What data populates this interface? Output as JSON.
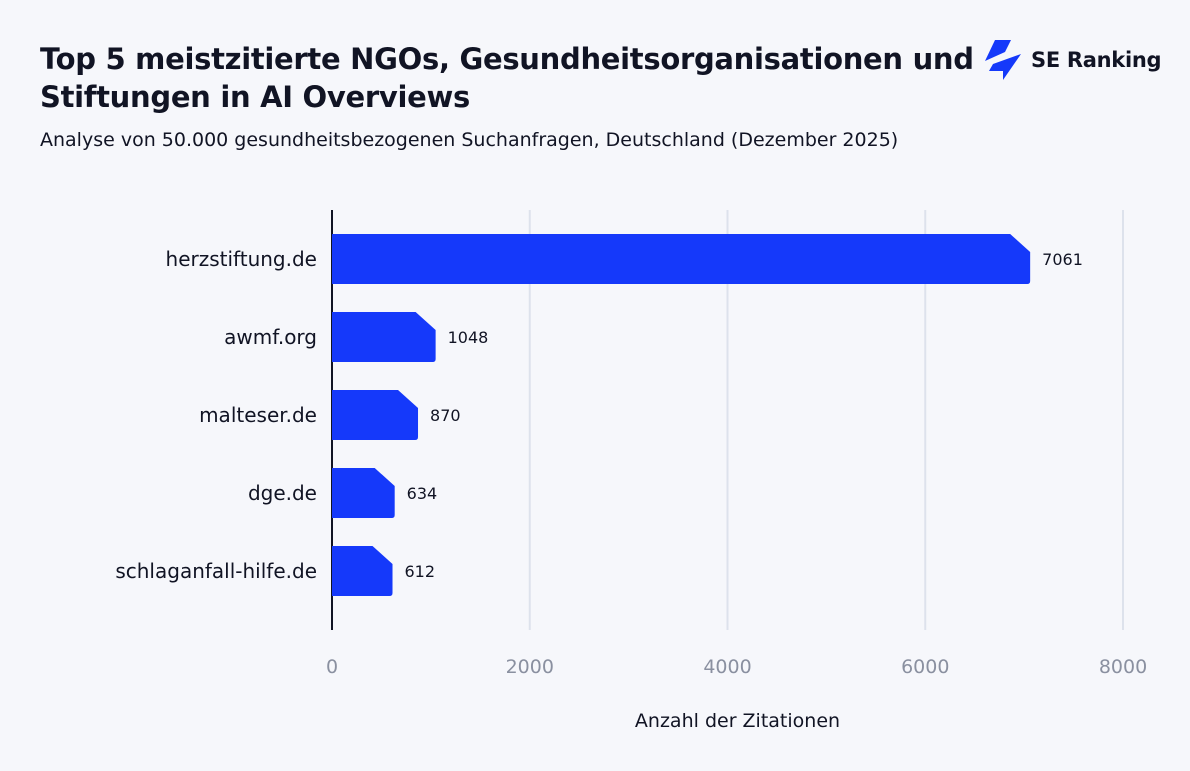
{
  "title": "Top 5 meistzitierte NGOs, Gesundheitsorganisationen und Stiftungen in AI Overviews",
  "subtitle": "Analyse von 50.000 gesundheitsbezogenen Suchanfragen, Deutschland (Dezember 2025)",
  "logo": {
    "text": "SE Ranking",
    "icon": "se-ranking-bolt-icon",
    "color": "#1539fa"
  },
  "chart_data": {
    "type": "bar",
    "orientation": "horizontal",
    "categories": [
      "herzstiftung.de",
      "awmf.org",
      "malteser.de",
      "dge.de",
      "schlaganfall-hilfe.de"
    ],
    "values": [
      7061,
      1048,
      870,
      634,
      612
    ],
    "data_labels": [
      "7061",
      "1048",
      "870",
      "634",
      "612"
    ],
    "xlabel": "Anzahl der Zitationen",
    "ylabel": "",
    "xlim": [
      0,
      8000
    ],
    "xticks": [
      0,
      2000,
      4000,
      6000,
      8000
    ],
    "xtick_labels": [
      "0",
      "2000",
      "4000",
      "6000",
      "8000"
    ],
    "grid": "vertical",
    "bar_color": "#1539fa"
  }
}
